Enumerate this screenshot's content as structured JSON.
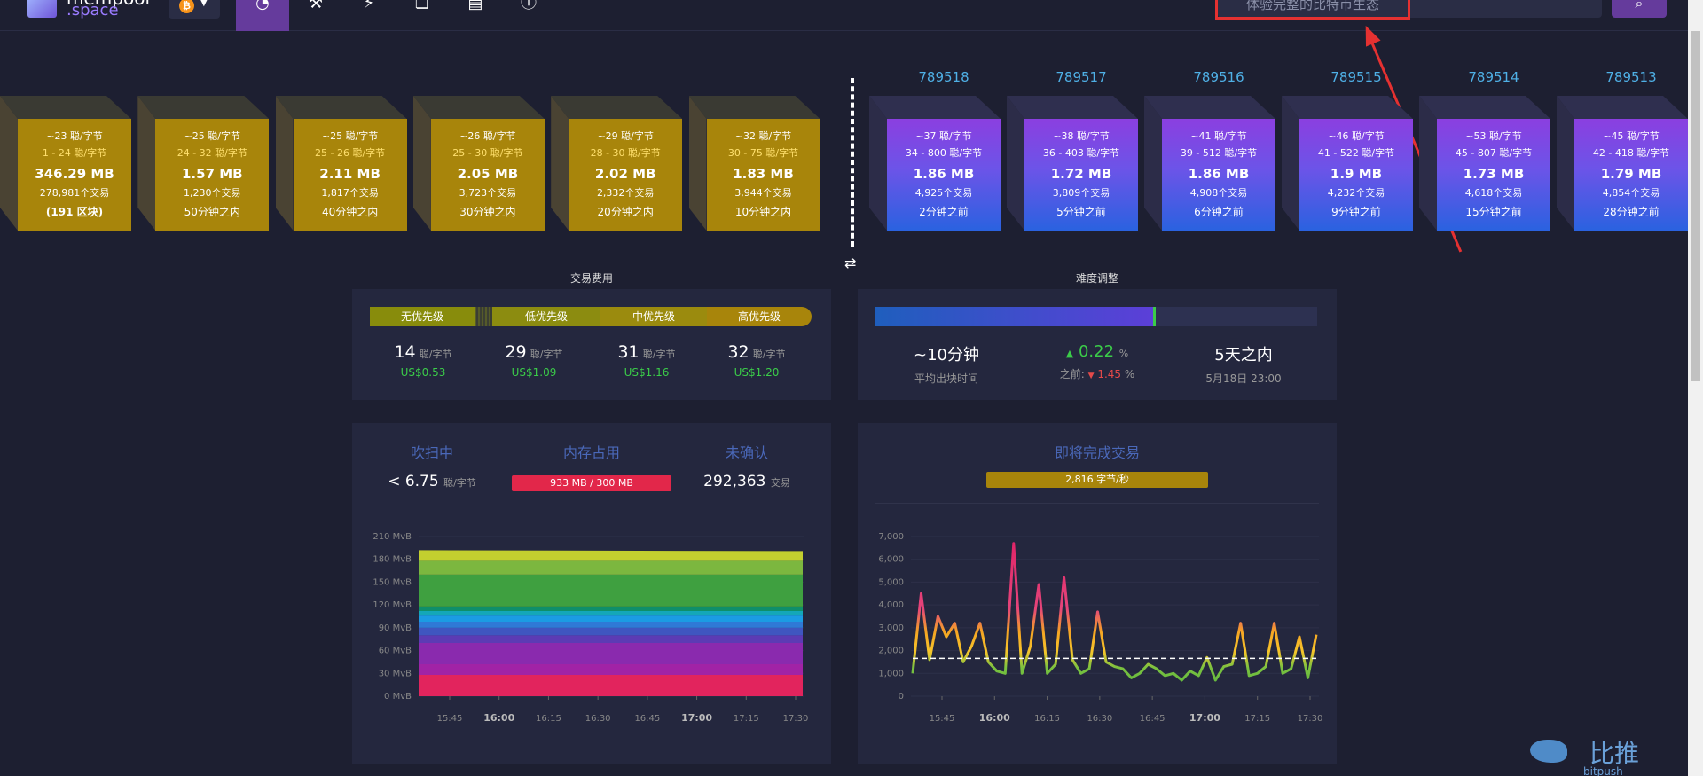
{
  "header": {
    "logo_name": "mempool",
    "logo_sub": ".space",
    "network_coin": "₿",
    "search_placeholder": "体验完整的比特币生态",
    "search_icon": "magnifier-icon",
    "nav_icons": [
      "gauge-icon",
      "pickaxe-icon",
      "lightning-icon",
      "blocks-icon",
      "document-icon",
      "info-icon"
    ]
  },
  "pending_blocks": [
    {
      "fee": "~23 聪/字节",
      "range": "1 - 24 聪/字节",
      "size": "346.29 MB",
      "tx": "278,981个交易",
      "eta": "(191 区块)"
    },
    {
      "fee": "~25 聪/字节",
      "range": "24 - 32 聪/字节",
      "size": "1.57 MB",
      "tx": "1,230个交易",
      "eta": "50分钟之内"
    },
    {
      "fee": "~25 聪/字节",
      "range": "25 - 26 聪/字节",
      "size": "2.11 MB",
      "tx": "1,817个交易",
      "eta": "40分钟之内"
    },
    {
      "fee": "~26 聪/字节",
      "range": "25 - 30 聪/字节",
      "size": "2.05 MB",
      "tx": "3,723个交易",
      "eta": "30分钟之内"
    },
    {
      "fee": "~29 聪/字节",
      "range": "28 - 30 聪/字节",
      "size": "2.02 MB",
      "tx": "2,332个交易",
      "eta": "20分钟之内"
    },
    {
      "fee": "~32 聪/字节",
      "range": "30 - 75 聪/字节",
      "size": "1.83 MB",
      "tx": "3,944个交易",
      "eta": "10分钟之内"
    }
  ],
  "mined_blocks": [
    {
      "height": "789518",
      "fee": "~37 聪/字节",
      "range": "34 - 800 聪/字节",
      "size": "1.86 MB",
      "tx": "4,925个交易",
      "ago": "2分钟之前"
    },
    {
      "height": "789517",
      "fee": "~38 聪/字节",
      "range": "36 - 403 聪/字节",
      "size": "1.72 MB",
      "tx": "3,809个交易",
      "ago": "5分钟之前"
    },
    {
      "height": "789516",
      "fee": "~41 聪/字节",
      "range": "39 - 512 聪/字节",
      "size": "1.86 MB",
      "tx": "4,908个交易",
      "ago": "6分钟之前"
    },
    {
      "height": "789515",
      "fee": "~46 聪/字节",
      "range": "41 - 522 聪/字节",
      "size": "1.9 MB",
      "tx": "4,232个交易",
      "ago": "9分钟之前"
    },
    {
      "height": "789514",
      "fee": "~53 聪/字节",
      "range": "45 - 807 聪/字节",
      "size": "1.73 MB",
      "tx": "4,618个交易",
      "ago": "15分钟之前"
    },
    {
      "height": "789513",
      "fee": "~45 聪/字节",
      "range": "42 - 418 聪/字节",
      "size": "1.79 MB",
      "tx": "4,854个交易",
      "ago": "28分钟之前"
    }
  ],
  "fees": {
    "title": "交易费用",
    "labels": [
      "无优先级",
      "低优先级",
      "中优先级",
      "高优先级"
    ],
    "values": [
      "14",
      "29",
      "31",
      "32"
    ],
    "unit": "聪/字节",
    "usd": [
      "US$0.53",
      "US$1.09",
      "US$1.16",
      "US$1.20"
    ]
  },
  "difficulty": {
    "title": "难度调整",
    "progress_fraction": 0.63,
    "avg_time": "~10分钟",
    "avg_time_label": "平均出块时间",
    "change": "0.22",
    "change_unit": "%",
    "previous_label": "之前:",
    "previous": "1.45",
    "previous_unit": "%",
    "eta": "5天之内",
    "eta_date": "5月18日 23:00"
  },
  "mempool": {
    "purge_label": "吹扫中",
    "purge_value": "< 6.75",
    "purge_unit": "聪/字节",
    "memory_label": "内存占用",
    "memory_value": "933 MB / 300 MB",
    "unconfirmed_label": "未确认",
    "unconfirmed_value": "292,363",
    "unconfirmed_unit": "交易"
  },
  "incoming": {
    "title": "即将完成交易",
    "rate": "2,816 字节/秒"
  },
  "watermark": {
    "text": "比推",
    "sub": "bitpush"
  },
  "chart_data": [
    {
      "type": "area",
      "ylabel_ticks": [
        "0 MvB",
        "30 MvB",
        "60 MvB",
        "90 MvB",
        "120 MvB",
        "150 MvB",
        "180 MvB",
        "210 MvB"
      ],
      "ylim": [
        0,
        210
      ],
      "x_ticks": [
        "15:45",
        "16:00",
        "16:15",
        "16:30",
        "16:45",
        "17:00",
        "17:15",
        "17:30"
      ],
      "bold_ticks": [
        "16:00",
        "17:00"
      ],
      "series": [
        {
          "value": 28,
          "color": "#e2245d"
        },
        {
          "value": 14,
          "color": "#a123a6"
        },
        {
          "value": 28,
          "color": "#8a2aae"
        },
        {
          "value": 10,
          "color": "#5c3bb4"
        },
        {
          "value": 10,
          "color": "#3f56c0"
        },
        {
          "value": 8,
          "color": "#2f79d6"
        },
        {
          "value": 8,
          "color": "#1b9be3"
        },
        {
          "value": 6,
          "color": "#14a7b8"
        },
        {
          "value": 6,
          "color": "#0f8f6a"
        },
        {
          "value": 42,
          "color": "#3fa040"
        },
        {
          "value": 18,
          "color": "#7cb73f"
        },
        {
          "value": 14,
          "color": "#c3cf2f"
        }
      ]
    },
    {
      "type": "line",
      "y_ticks": [
        "0",
        "1,000",
        "2,000",
        "3,000",
        "4,000",
        "5,000",
        "6,000",
        "7,000"
      ],
      "ylim": [
        0,
        7000
      ],
      "x_ticks": [
        "15:45",
        "16:00",
        "16:15",
        "16:30",
        "16:45",
        "17:00",
        "17:15",
        "17:30"
      ],
      "bold_ticks": [
        "16:00",
        "17:00"
      ],
      "reference": 1660,
      "values": [
        1000,
        4500,
        1600,
        3500,
        2600,
        3200,
        1500,
        2200,
        3200,
        1500,
        1100,
        1000,
        6700,
        1000,
        2200,
        4900,
        1000,
        1400,
        5200,
        1600,
        1000,
        1200,
        3700,
        1500,
        1300,
        1200,
        800,
        1000,
        1400,
        1200,
        900,
        1000,
        700,
        1100,
        900,
        1700,
        700,
        1300,
        1400,
        3200,
        900,
        1000,
        1300,
        3200,
        1000,
        1200,
        2600,
        800,
        2700
      ]
    }
  ]
}
